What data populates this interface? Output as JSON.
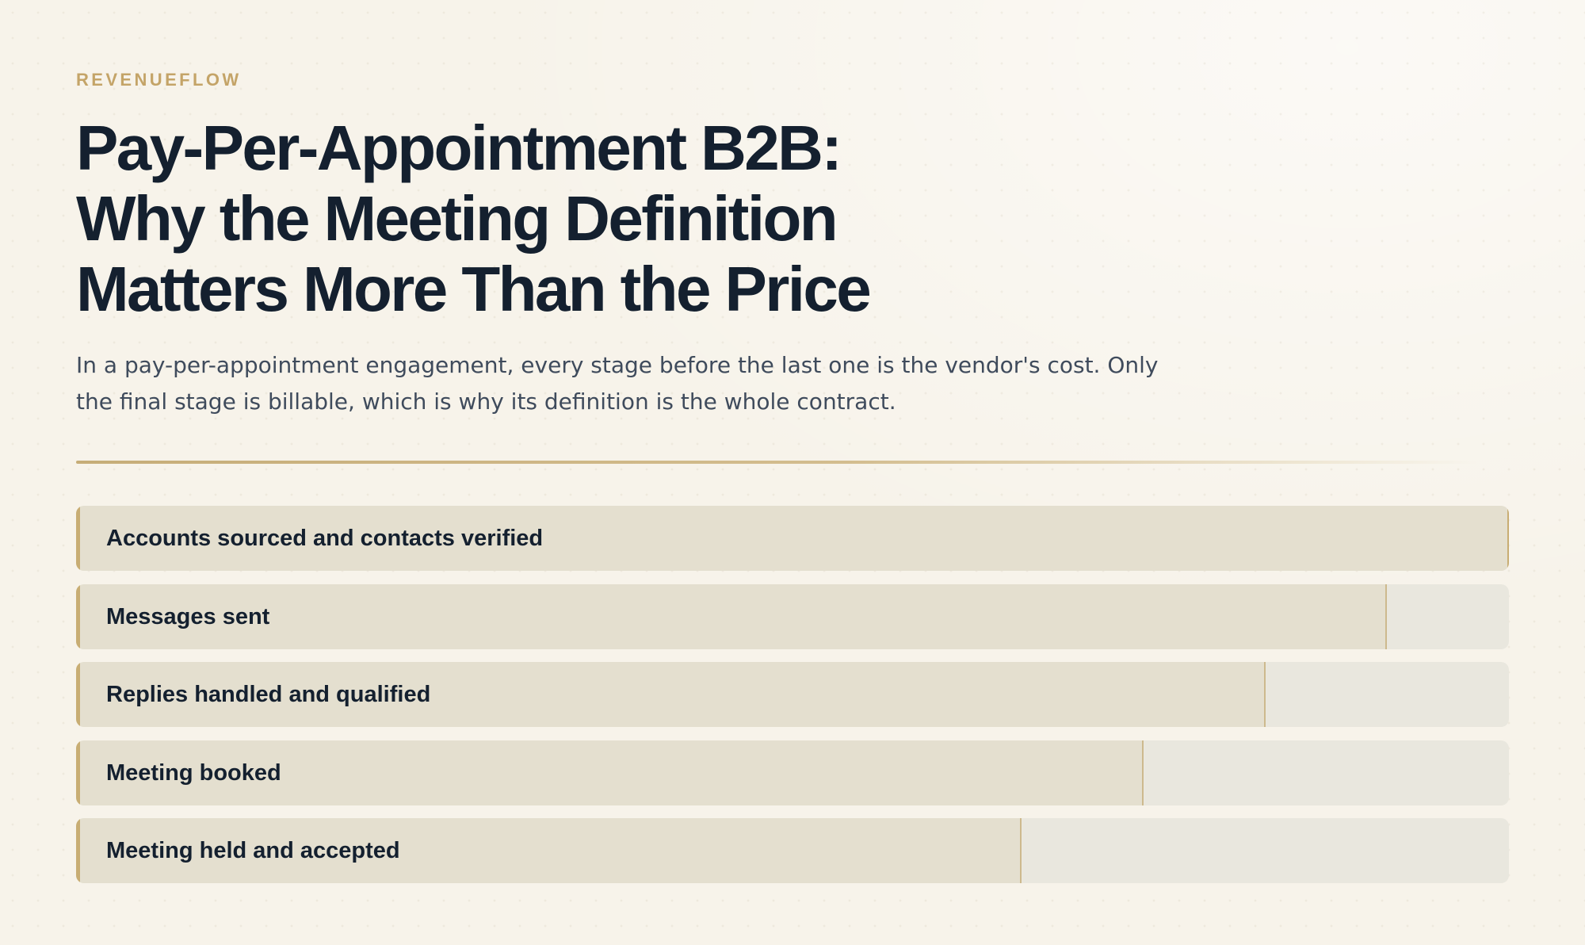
{
  "header": {
    "brand": "REVENUEFLOW",
    "title_lines": [
      "Pay-Per-Appointment B2B:",
      "Why the Meeting Definition",
      "Matters More Than the Price"
    ],
    "subtitle_lines": [
      "In a pay-per-appointment engagement, every stage before the last one is the vendor's cost. Only",
      "the final stage is billable, which is why its definition is the whole contract."
    ]
  },
  "colors": {
    "brand": "#c4a468",
    "title": "#14202f",
    "subtitle": "#3f4b5c",
    "accent": "#c8ad73",
    "fill": "#e4dfcf",
    "track": "#e9e7de"
  },
  "stages": [
    {
      "label": "Accounts sourced and contacts verified",
      "fill_fraction": 1.0
    },
    {
      "label": "Messages sent",
      "fill_fraction": 0.915
    },
    {
      "label": "Replies handled and qualified",
      "fill_fraction": 0.83
    },
    {
      "label": "Meeting booked",
      "fill_fraction": 0.745
    },
    {
      "label": "Meeting held and accepted",
      "fill_fraction": 0.66
    }
  ]
}
